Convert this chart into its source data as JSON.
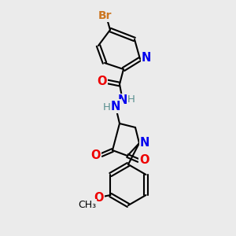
{
  "background_color": "#ebebeb",
  "bond_color": "#000000",
  "atom_colors": {
    "Br": "#cc7722",
    "N": "#0000ee",
    "O": "#ee0000",
    "C": "#000000",
    "H": "#5a9090"
  },
  "font_size": 9.5,
  "lw": 1.5
}
